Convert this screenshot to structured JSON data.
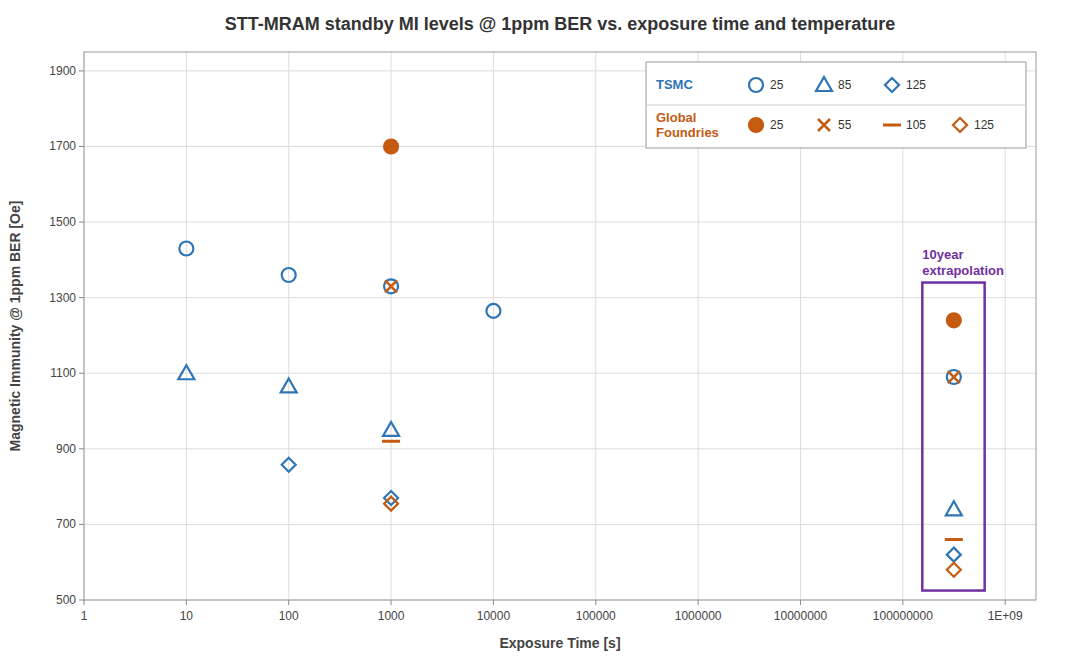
{
  "chart_data": {
    "type": "scatter",
    "title": "STT-MRAM standby MI levels @ 1ppm BER vs. exposure time and temperature",
    "xlabel": "Exposure Time [s]",
    "ylabel": "Magnetic Immunity @ 1ppm BER  [Oe]",
    "log": "x",
    "grid": true,
    "legend": "upper right",
    "xlim": [
      1,
      2000000000
    ],
    "xticks": [
      1,
      10,
      100,
      1000,
      10000,
      100000,
      1000000,
      10000000,
      100000000,
      {
        "value": 1000000000,
        "label": "1E+09"
      }
    ],
    "ylim": [
      500,
      1950
    ],
    "yticks": [
      500,
      700,
      900,
      1100,
      1300,
      1500,
      1700,
      1900
    ],
    "series": [
      {
        "name": "25",
        "group": "TSMC",
        "color": "#2E75B6",
        "marker": "circle",
        "x": [
          10,
          100,
          1000,
          10000,
          315000000
        ],
        "values": [
          1430,
          1360,
          1330,
          1265,
          1090
        ]
      },
      {
        "name": "85",
        "group": "TSMC",
        "color": "#2E75B6",
        "marker": "triangle",
        "x": [
          10,
          100,
          1000,
          315000000
        ],
        "values": [
          1100,
          1065,
          950,
          740
        ]
      },
      {
        "name": "125",
        "group": "TSMC",
        "color": "#2E75B6",
        "marker": "diamond",
        "x": [
          100,
          1000,
          315000000
        ],
        "values": [
          858,
          770,
          620
        ]
      },
      {
        "name": "25",
        "group": "Global\nFoundries",
        "color": "#C55A11",
        "marker": "disc",
        "x": [
          1000,
          315000000
        ],
        "values": [
          1700,
          1240
        ]
      },
      {
        "name": "55",
        "group": "Global\nFoundries",
        "color": "#C55A11",
        "marker": "x",
        "x": [
          1000,
          315000000
        ],
        "values": [
          1330,
          1090
        ]
      },
      {
        "name": "105",
        "group": "Global\nFoundries",
        "color": "#C55A11",
        "marker": "dash",
        "x": [
          1000,
          315000000
        ],
        "values": [
          920,
          660
        ]
      },
      {
        "name": "125",
        "group": "Global\nFoundries",
        "color": "#C55A11",
        "marker": "diamond",
        "x": [
          1000,
          315000000
        ],
        "values": [
          755,
          580
        ]
      }
    ],
    "annotations": [
      {
        "text": "10year\nextrapolation",
        "color": "#7030A0",
        "x": [
          155000000,
          630000000
        ],
        "y": [
          525,
          1340
        ]
      }
    ]
  }
}
